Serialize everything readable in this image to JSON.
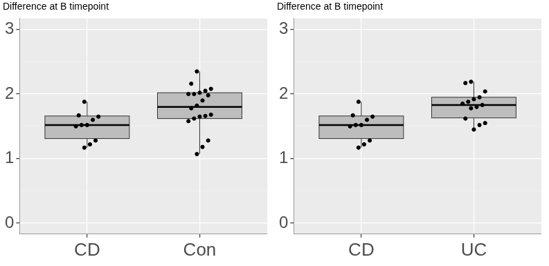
{
  "chart_data": [
    {
      "type": "box",
      "title": "Difference at B timepoint",
      "categories": [
        "CD",
        "Con"
      ],
      "boxes": [
        {
          "whisker_low": 1.17,
          "q1": 1.31,
          "median": 1.52,
          "q3": 1.66,
          "whisker_high": 1.88
        },
        {
          "whisker_low": 1.07,
          "q1": 1.62,
          "median": 1.8,
          "q3": 2.02,
          "whisker_high": 2.35
        }
      ],
      "points": [
        [
          1.88,
          1.67,
          1.65,
          1.6,
          1.52,
          1.52,
          1.5,
          1.28,
          1.22,
          1.17
        ],
        [
          2.35,
          2.16,
          2.08,
          2.05,
          2.02,
          2.0,
          2.0,
          1.98,
          1.9,
          1.82,
          1.78,
          1.68,
          1.66,
          1.65,
          1.62,
          1.58,
          1.28,
          1.18,
          1.07
        ]
      ],
      "color": "#bdbdbd",
      "ylim": [
        -0.17,
        3.17
      ],
      "yticks": [
        0,
        1,
        2,
        3
      ],
      "grid": true
    },
    {
      "type": "box",
      "title": "Difference at B timepoint",
      "categories": [
        "CD",
        "UC"
      ],
      "boxes": [
        {
          "whisker_low": 1.17,
          "q1": 1.31,
          "median": 1.52,
          "q3": 1.66,
          "whisker_high": 1.88
        },
        {
          "whisker_low": 1.45,
          "q1": 1.63,
          "median": 1.83,
          "q3": 1.95,
          "whisker_high": 2.19
        }
      ],
      "points": [
        [
          1.88,
          1.67,
          1.65,
          1.6,
          1.52,
          1.52,
          1.5,
          1.28,
          1.22,
          1.17
        ],
        [
          2.19,
          2.17,
          2.04,
          1.95,
          1.92,
          1.88,
          1.85,
          1.83,
          1.8,
          1.78,
          1.62,
          1.55,
          1.52,
          1.45
        ]
      ],
      "color": "#bdbdbd",
      "ylim": [
        -0.17,
        3.17
      ],
      "yticks": [
        0,
        1,
        2,
        3
      ],
      "grid": true
    }
  ]
}
